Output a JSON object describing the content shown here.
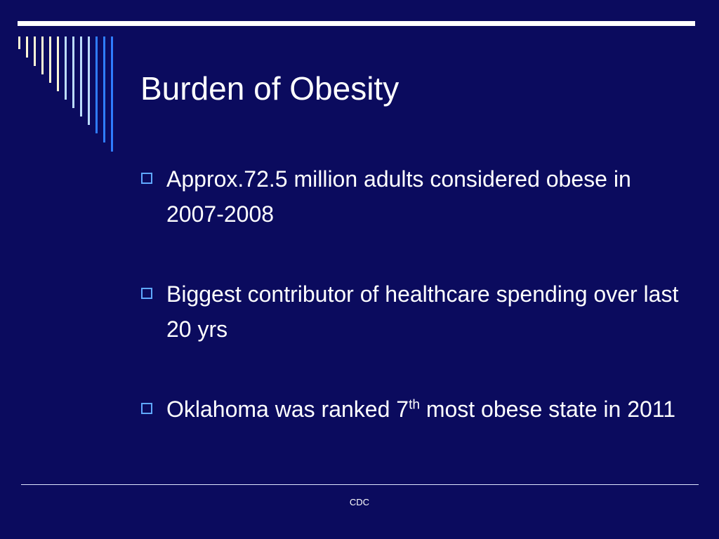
{
  "slide": {
    "title": "Burden of Obesity",
    "bullets": [
      {
        "text": "Approx.72.5  million adults considered obese in 2007-2008"
      },
      {
        "text": "Biggest contributor of healthcare spending over last 20 yrs"
      },
      {
        "text_before": "Oklahoma was ranked 7",
        "superscript": "th",
        "text_after": " most obese state in 2011"
      }
    ],
    "footer": "CDC"
  },
  "colors": {
    "background": "#0b0b5e",
    "text": "#ffffff",
    "bullet_box": "#5fa8ff",
    "stripe_light": "#fff8d6",
    "stripe_mid": "#bcdcff",
    "stripe_blue": "#2f7dff"
  },
  "icons": {
    "bullet": "hollow-square-icon"
  }
}
